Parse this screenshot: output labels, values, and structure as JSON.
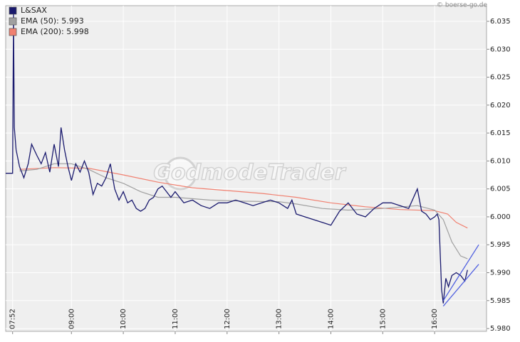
{
  "chart_data": {
    "type": "line",
    "source": "© boerse-go.de",
    "watermark": "GodmodeTrader",
    "xlim": [
      464,
      1020
    ],
    "ylim": [
      5.9795,
      6.0378
    ],
    "grid": true,
    "legend": "top-left",
    "xticks": [
      {
        "value": 472,
        "label": "07:52"
      },
      {
        "value": 540,
        "label": "09:00"
      },
      {
        "value": 600,
        "label": "10:00"
      },
      {
        "value": 660,
        "label": "11:00"
      },
      {
        "value": 720,
        "label": "12:00"
      },
      {
        "value": 780,
        "label": "13:00"
      },
      {
        "value": 840,
        "label": "14:00"
      },
      {
        "value": 900,
        "label": "15:00"
      },
      {
        "value": 960,
        "label": "16:00"
      }
    ],
    "yticks": [
      {
        "value": 5.98,
        "label": "5.980"
      },
      5.985,
      {
        "value": 5.99,
        "label": "5.990"
      },
      5.995,
      {
        "value": 6.0,
        "label": "6.000"
      },
      6.005,
      {
        "value": 6.01,
        "label": "6.010"
      },
      6.015,
      {
        "value": 6.02,
        "label": "6.020"
      },
      6.025,
      {
        "value": 6.03,
        "label": "6.030"
      },
      6.035
    ],
    "series": [
      {
        "name": "L&SAX",
        "color": "#1a1a6e",
        "x": [
          464,
          472,
          473,
          474,
          476,
          480,
          485,
          490,
          494,
          500,
          505,
          510,
          515,
          520,
          525,
          528,
          532,
          536,
          540,
          545,
          550,
          555,
          560,
          565,
          570,
          575,
          580,
          585,
          590,
          595,
          600,
          605,
          610,
          615,
          620,
          625,
          630,
          635,
          640,
          645,
          650,
          655,
          660,
          670,
          680,
          690,
          700,
          710,
          720,
          730,
          740,
          750,
          760,
          770,
          780,
          790,
          795,
          800,
          810,
          820,
          830,
          840,
          850,
          860,
          870,
          880,
          890,
          900,
          910,
          920,
          930,
          940,
          945,
          950,
          955,
          960,
          963,
          965,
          968,
          970,
          973,
          976,
          980,
          985,
          990,
          995,
          998
        ],
        "values": [
          6.0078,
          6.0078,
          6.0363,
          6.016,
          6.012,
          6.009,
          6.007,
          6.0095,
          6.013,
          6.011,
          6.0095,
          6.0115,
          6.008,
          6.013,
          6.009,
          6.016,
          6.012,
          6.009,
          6.0065,
          6.0095,
          6.008,
          6.01,
          6.008,
          6.004,
          6.006,
          6.0055,
          6.007,
          6.0095,
          6.005,
          6.003,
          6.0045,
          6.0025,
          6.003,
          6.0015,
          6.001,
          6.0015,
          6.003,
          6.0035,
          6.005,
          6.0055,
          6.0045,
          6.0035,
          6.0045,
          6.0025,
          6.003,
          6.002,
          6.0015,
          6.0025,
          6.0025,
          6.003,
          6.0025,
          6.002,
          6.0025,
          6.003,
          6.0025,
          6.0015,
          6.003,
          6.0005,
          6.0,
          5.9995,
          5.999,
          5.9985,
          6.001,
          6.0025,
          6.0005,
          6.0,
          6.0015,
          6.0025,
          6.0025,
          6.002,
          6.0015,
          6.005,
          6.001,
          6.0005,
          5.9995,
          6.0,
          6.0005,
          5.9995,
          5.987,
          5.9845,
          5.989,
          5.9875,
          5.9895,
          5.99,
          5.9895,
          5.9885,
          5.9905
        ]
      },
      {
        "name": "EMA (50): 5.993",
        "color": "#a0a0a0",
        "x": [
          480,
          500,
          520,
          540,
          560,
          580,
          600,
          620,
          640,
          660,
          700,
          740,
          780,
          800,
          830,
          860,
          900,
          940,
          960,
          970,
          980,
          990,
          998
        ],
        "values": [
          6.0082,
          6.0085,
          6.0095,
          6.0095,
          6.0085,
          6.007,
          6.006,
          6.0045,
          6.0035,
          6.0035,
          6.003,
          6.0028,
          6.0027,
          6.0023,
          6.0015,
          6.0012,
          6.0015,
          6.002,
          6.0012,
          5.9995,
          5.9955,
          5.993,
          5.9925
        ]
      },
      {
        "name": "EMA (200): 5.998",
        "color": "#f08070",
        "x": [
          480,
          520,
          560,
          600,
          640,
          680,
          720,
          760,
          800,
          840,
          880,
          920,
          960,
          975,
          985,
          998
        ],
        "values": [
          6.0085,
          6.0088,
          6.0087,
          6.0075,
          6.0062,
          6.0052,
          6.0047,
          6.0042,
          6.0035,
          6.0025,
          6.0018,
          6.0013,
          6.0011,
          6.0005,
          5.999,
          5.998
        ]
      }
    ],
    "trendlines": [
      {
        "color": "#5060e0",
        "x": [
          970,
          1011
        ],
        "values": [
          5.985,
          5.995
        ]
      },
      {
        "color": "#5060e0",
        "x": [
          970,
          1011
        ],
        "values": [
          5.984,
          5.9915
        ]
      }
    ]
  }
}
